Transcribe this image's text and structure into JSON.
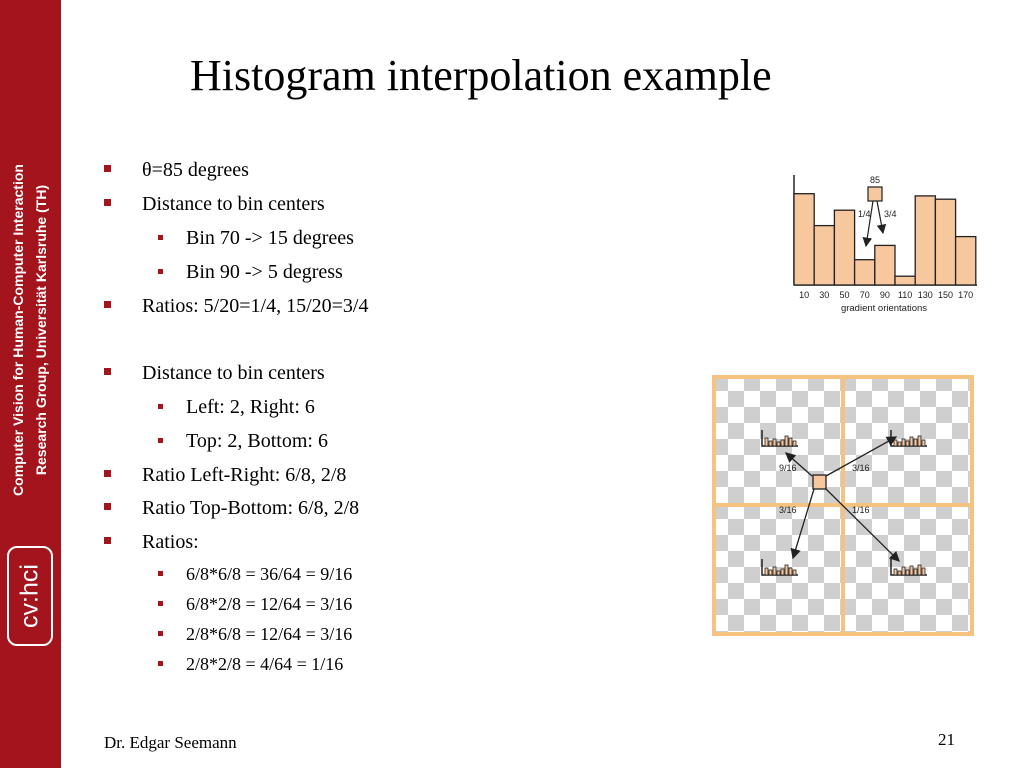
{
  "sidebar": {
    "line1": "Computer Vision for Human-Computer Interaction",
    "line2": "Research Group, Universität Karlsruhe (TH)",
    "logo": "cv:hci"
  },
  "slide": {
    "title": "Histogram interpolation example",
    "bullets": {
      "b1": "θ=85 degrees",
      "b2": "Distance to bin centers",
      "b2a": "Bin 70 -> 15 degrees",
      "b2b": "Bin 90 -> 5 degress",
      "b3": "Ratios: 5/20=1/4, 15/20=3/4",
      "b4": "Distance to bin centers",
      "b4a": "Left: 2, Right: 6",
      "b4b": "Top: 2, Bottom: 6",
      "b5": "Ratio Left-Right: 6/8, 2/8",
      "b6": "Ratio Top-Bottom: 6/8, 2/8",
      "b7": "Ratios:",
      "b7a": "6/8*6/8 = 36/64 = 9/16",
      "b7b": "6/8*2/8 = 12/64 = 3/16",
      "b7c": "2/8*6/8 = 12/64 = 3/16",
      "b7d": "2/8*2/8 = 4/64   = 1/16"
    },
    "footer": "Dr. Edgar Seemann",
    "page_number": "21"
  },
  "histogram_figure": {
    "bin_labels": [
      "10",
      "30",
      "50",
      "70",
      "90",
      "110",
      "130",
      "150",
      "170"
    ],
    "bin_values": [
      0.83,
      0.54,
      0.68,
      0.23,
      0.36,
      0.08,
      0.81,
      0.78,
      0.44
    ],
    "marker_label": "85",
    "left_ratio": "1/4",
    "right_ratio": "3/4",
    "axis_caption": "gradient orientations",
    "bar_color": "#f7c79d"
  },
  "grid_figure": {
    "ratio_top_left": "9/16",
    "ratio_top_right": "3/16",
    "ratio_bottom_left": "3/16",
    "ratio_bottom_right": "1/16",
    "cell_border_color": "#f6c27f",
    "marker_color": "#f7c79d"
  }
}
